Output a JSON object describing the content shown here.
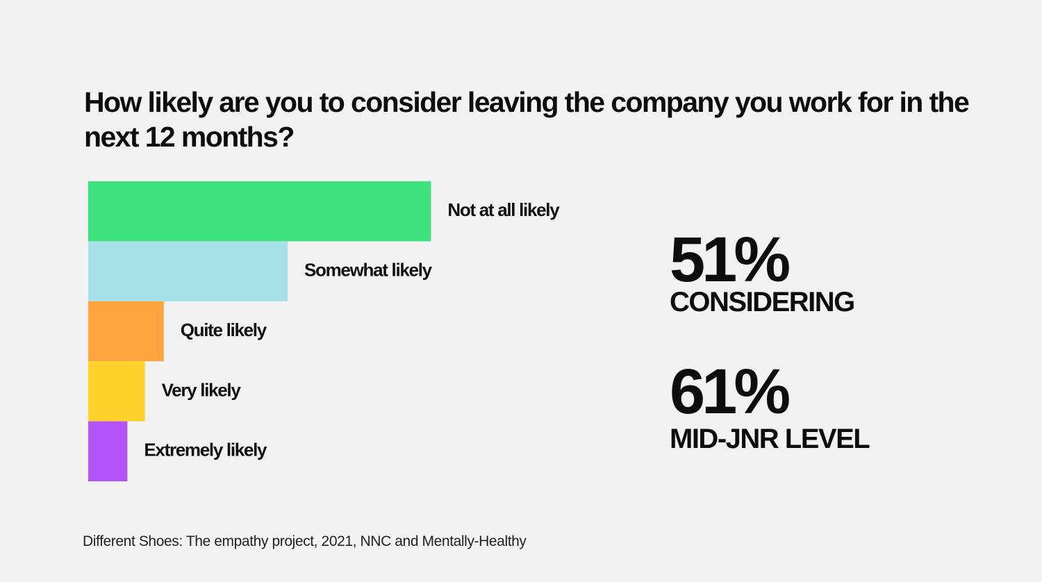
{
  "chart_data": {
    "type": "bar",
    "orientation": "horizontal",
    "title": "How likely are you to consider leaving the company you work for in the next 12 months?",
    "categories": [
      "Not at all likely",
      "Somewhat likely",
      "Quite likely",
      "Very likely",
      "Extremely likely"
    ],
    "values": [
      49,
      28.5,
      10.8,
      8.1,
      5.6
    ],
    "colors": [
      "#3de27f",
      "#a6dfe8",
      "#ffa640",
      "#ffd12a",
      "#b553fd"
    ],
    "xlim": [
      0,
      100
    ],
    "value_labels_shown": false,
    "xlabel": "",
    "ylabel": "",
    "grid": false,
    "legend": "none"
  },
  "stats": [
    {
      "number": "51%",
      "label": "CONSIDERING"
    },
    {
      "number": "61%",
      "label": "MID-JNR LEVEL"
    }
  ],
  "source": "Different Shoes: The empathy project, 2021, NNC and Mentally-Healthy"
}
